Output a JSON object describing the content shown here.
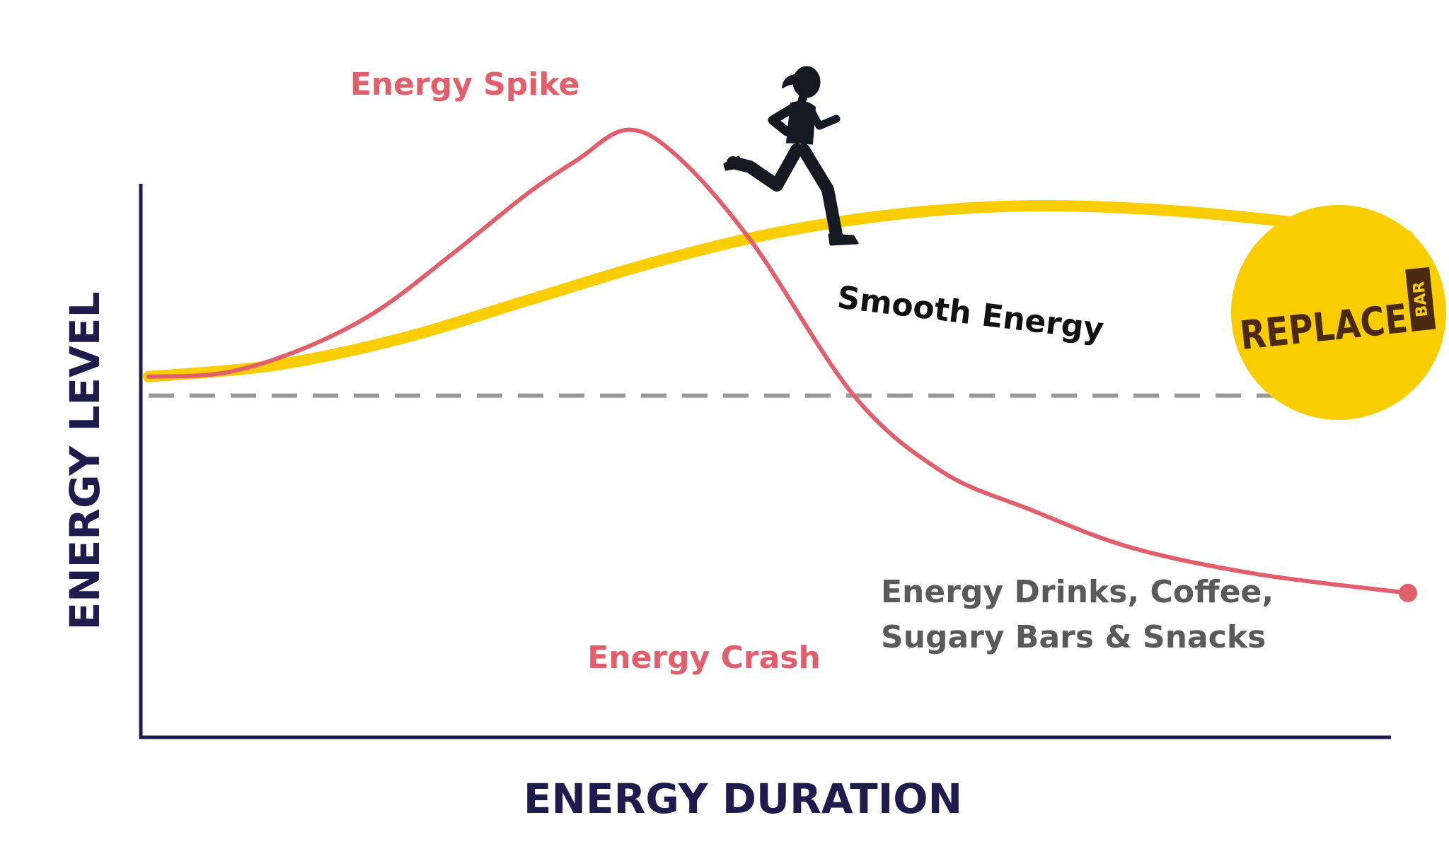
{
  "chart_data": {
    "type": "line",
    "xlabel": "ENERGY DURATION",
    "ylabel": "ENERGY LEVEL",
    "series": [
      {
        "id": "spike",
        "color": "#e05f6a",
        "x": [
          0,
          6,
          12,
          18,
          24,
          30,
          34,
          38,
          42,
          48,
          56,
          63,
          70,
          78,
          88,
          100
        ],
        "values": [
          35,
          36,
          42,
          52,
          67,
          83,
          92,
          100,
          93,
          70,
          30,
          10,
          0,
          -10,
          -17,
          -22
        ]
      },
      {
        "id": "smooth",
        "color": "#f9cd00",
        "x": [
          0,
          10,
          20,
          30,
          40,
          50,
          60,
          70,
          80,
          90,
          100
        ],
        "values": [
          35,
          38,
          45,
          55,
          65,
          73,
          78,
          80,
          79,
          76,
          72
        ]
      }
    ],
    "xlim": [
      0,
      100
    ],
    "ylim": [
      -60,
      110
    ],
    "reference_line": {
      "y": 30,
      "style": "dashed",
      "color": "#999999"
    },
    "annotations": {
      "spike_label": "Energy Spike",
      "crash_label": "Energy Crash",
      "smooth_label": "Smooth Energy",
      "note_line1": "Energy Drinks, Coffee,",
      "note_line2": "Sugary Bars & Snacks"
    },
    "colors": {
      "axis": "#1f1b4d",
      "spike": "#e05f6a",
      "smooth": "#f9cd00",
      "note": "#5a5a5a",
      "logo_text": "#4a2a12"
    }
  },
  "brand": {
    "logo_word": "REPLACE",
    "logo_tag": "BAR"
  },
  "icons": {
    "runner": "runner-silhouette-icon"
  }
}
